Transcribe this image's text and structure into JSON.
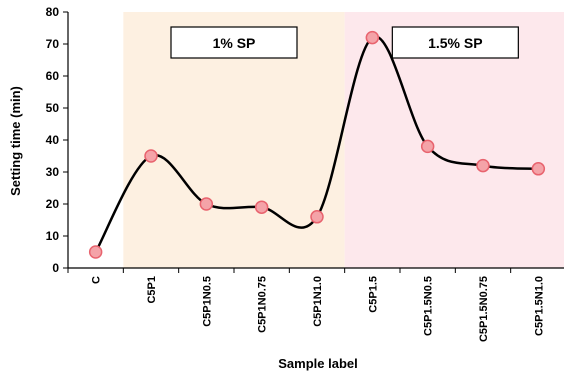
{
  "chart_data": {
    "type": "line",
    "xlabel": "Sample label",
    "ylabel": "Setting time (min)",
    "ylim": [
      0,
      80
    ],
    "yticks": [
      0,
      10,
      20,
      30,
      40,
      50,
      60,
      70,
      80
    ],
    "categories": [
      "C",
      "C5P1",
      "C5P1N0.5",
      "C5P1N0.75",
      "C5P1N1.0",
      "C5P1.5",
      "C5P1.5N0.5",
      "C5P1.5N0.75",
      "C5P1.5N1.0"
    ],
    "series": [
      {
        "values": [
          5,
          35,
          20,
          19,
          16,
          72,
          38,
          32,
          31
        ]
      }
    ],
    "regions": [
      {
        "label": "1% SP",
        "from_index": 0.5,
        "to_index": 4.5,
        "color": "#fdf0e1"
      },
      {
        "label": "1.5% SP",
        "from_index": 4.5,
        "to_index": 8.5,
        "color": "#fde8ec"
      }
    ],
    "grid": false,
    "smooth_line": true,
    "line_color": "#000000",
    "marker_fill": "#f4a3a8",
    "marker_stroke": "#e8636e"
  }
}
